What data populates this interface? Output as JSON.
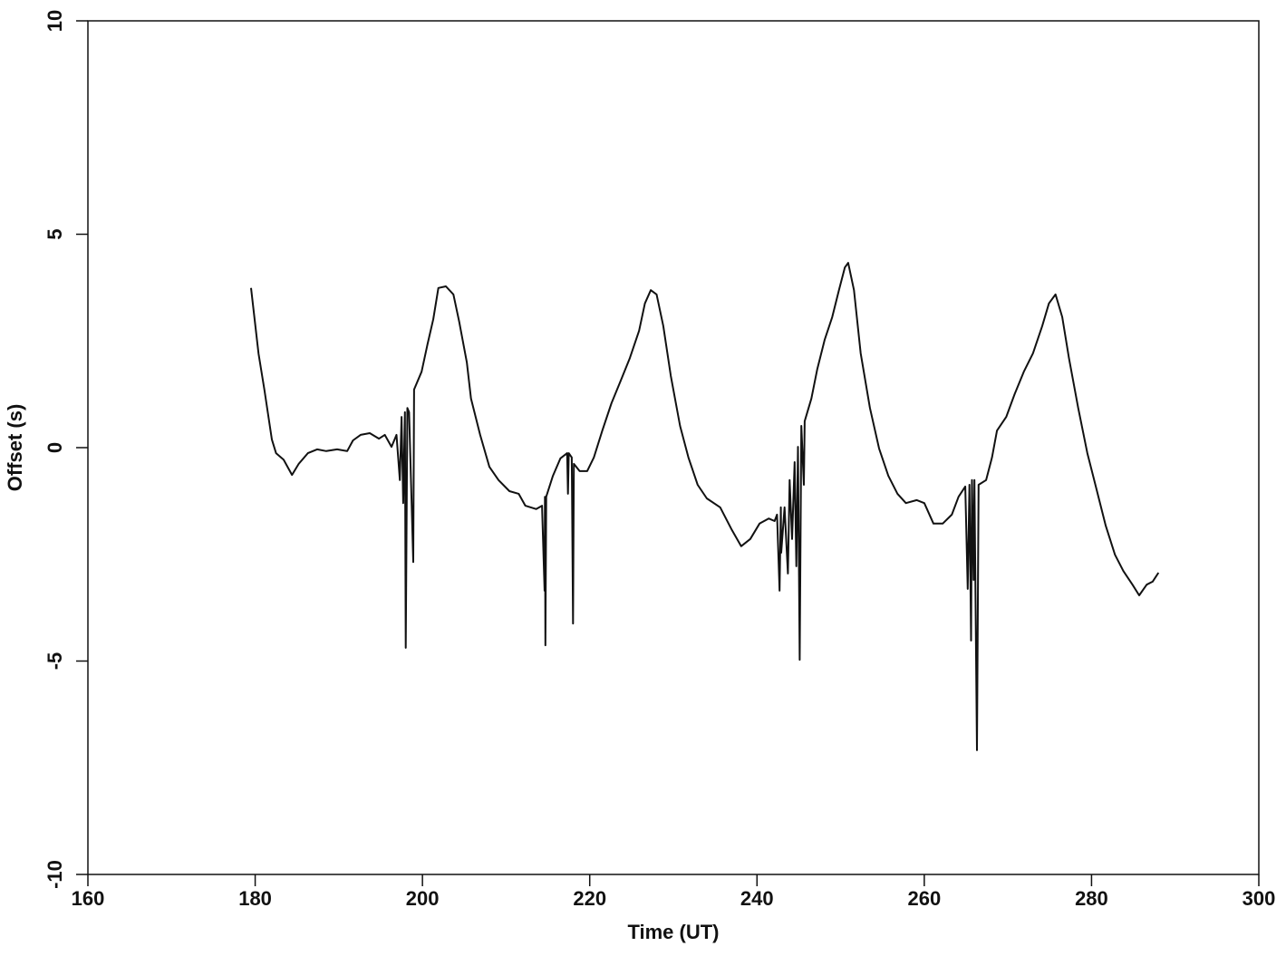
{
  "chart_data": {
    "type": "line",
    "xlabel": "Time (UT)",
    "ylabel": "Offset (s)",
    "xlim": [
      160,
      300
    ],
    "xticks": [
      160,
      180,
      200,
      220,
      240,
      260,
      280,
      300
    ],
    "ylim": [
      -10,
      10
    ],
    "yticks": [
      -10,
      -5,
      0,
      5,
      10
    ],
    "color": "#111111",
    "grid": false,
    "x": [
      179.5,
      180.4,
      181.1,
      182.0,
      182.5,
      183.4,
      184.4,
      185.2,
      186.3,
      187.4,
      188.5,
      189.8,
      191.0,
      191.7,
      192.6,
      193.7,
      194.8,
      195.5,
      196.3,
      196.9,
      197.3,
      197.5,
      197.7,
      197.9,
      198.0,
      198.2,
      198.4,
      198.9,
      199.0,
      199.9,
      200.6,
      201.3,
      201.9,
      202.8,
      203.7,
      204.4,
      205.3,
      205.8,
      206.9,
      208.0,
      209.1,
      210.4,
      211.5,
      212.3,
      213.6,
      214.3,
      214.6,
      214.65,
      214.7,
      214.8,
      215.6,
      216.5,
      217.3,
      217.4,
      217.5,
      217.85,
      218.0,
      218.1,
      218.8,
      219.7,
      220.5,
      221.5,
      222.6,
      223.7,
      224.8,
      225.9,
      226.6,
      227.3,
      228.0,
      228.8,
      229.7,
      230.8,
      231.8,
      232.9,
      234.0,
      235.6,
      237.0,
      238.1,
      239.2,
      240.3,
      241.4,
      242.1,
      242.4,
      242.7,
      242.85,
      242.9,
      243.3,
      243.7,
      243.9,
      244.2,
      244.5,
      244.7,
      244.9,
      245.1,
      245.3,
      245.6,
      245.7,
      246.5,
      247.2,
      248.1,
      249.0,
      249.8,
      250.5,
      250.9,
      251.6,
      252.4,
      253.5,
      254.6,
      255.7,
      256.8,
      257.8,
      259.1,
      260.0,
      261.1,
      262.2,
      263.3,
      264.1,
      264.9,
      265.2,
      265.4,
      265.6,
      265.7,
      265.9,
      266.0,
      266.3,
      266.5,
      267.4,
      268.1,
      268.7,
      269.8,
      270.8,
      271.9,
      273.0,
      274.1,
      274.9,
      275.7,
      276.5,
      277.3,
      278.4,
      279.5,
      280.6,
      281.7,
      282.8,
      283.8,
      284.9,
      285.7,
      286.6,
      287.3,
      288.0
    ],
    "values": [
      3.74,
      2.2,
      1.36,
      0.19,
      -0.13,
      -0.28,
      -0.64,
      -0.38,
      -0.13,
      -0.04,
      -0.08,
      -0.04,
      -0.08,
      0.17,
      0.3,
      0.34,
      0.21,
      0.3,
      0.02,
      0.3,
      -0.76,
      0.72,
      -1.3,
      0.83,
      -4.69,
      0.93,
      0.83,
      -2.68,
      1.36,
      1.78,
      2.42,
      3.01,
      3.74,
      3.78,
      3.59,
      2.95,
      2.0,
      1.15,
      0.3,
      -0.45,
      -0.76,
      -1.02,
      -1.08,
      -1.36,
      -1.44,
      -1.36,
      -3.35,
      -1.15,
      -4.63,
      -1.15,
      -0.66,
      -0.25,
      -0.13,
      -1.08,
      -0.13,
      -0.23,
      -4.12,
      -0.38,
      -0.55,
      -0.55,
      -0.23,
      0.4,
      1.04,
      1.57,
      2.1,
      2.74,
      3.38,
      3.69,
      3.59,
      2.85,
      1.68,
      0.51,
      -0.23,
      -0.87,
      -1.19,
      -1.4,
      -1.93,
      -2.31,
      -2.14,
      -1.78,
      -1.66,
      -1.72,
      -1.57,
      -3.35,
      -1.4,
      -2.46,
      -1.4,
      -2.95,
      -0.76,
      -2.14,
      -0.34,
      -2.78,
      0.02,
      -4.97,
      0.51,
      -0.87,
      0.62,
      1.15,
      1.83,
      2.53,
      3.06,
      3.69,
      4.22,
      4.33,
      3.69,
      2.21,
      0.93,
      -0.02,
      -0.66,
      -1.08,
      -1.3,
      -1.23,
      -1.3,
      -1.78,
      -1.78,
      -1.57,
      -1.15,
      -0.91,
      -3.31,
      -0.87,
      -4.52,
      -0.76,
      -3.1,
      -0.76,
      -7.09,
      -0.87,
      -0.76,
      -0.23,
      0.4,
      0.72,
      1.25,
      1.78,
      2.21,
      2.85,
      3.38,
      3.59,
      3.06,
      2.1,
      0.93,
      -0.13,
      -0.98,
      -1.83,
      -2.51,
      -2.89,
      -3.21,
      -3.46,
      -3.21,
      -3.14,
      -2.93
    ]
  }
}
